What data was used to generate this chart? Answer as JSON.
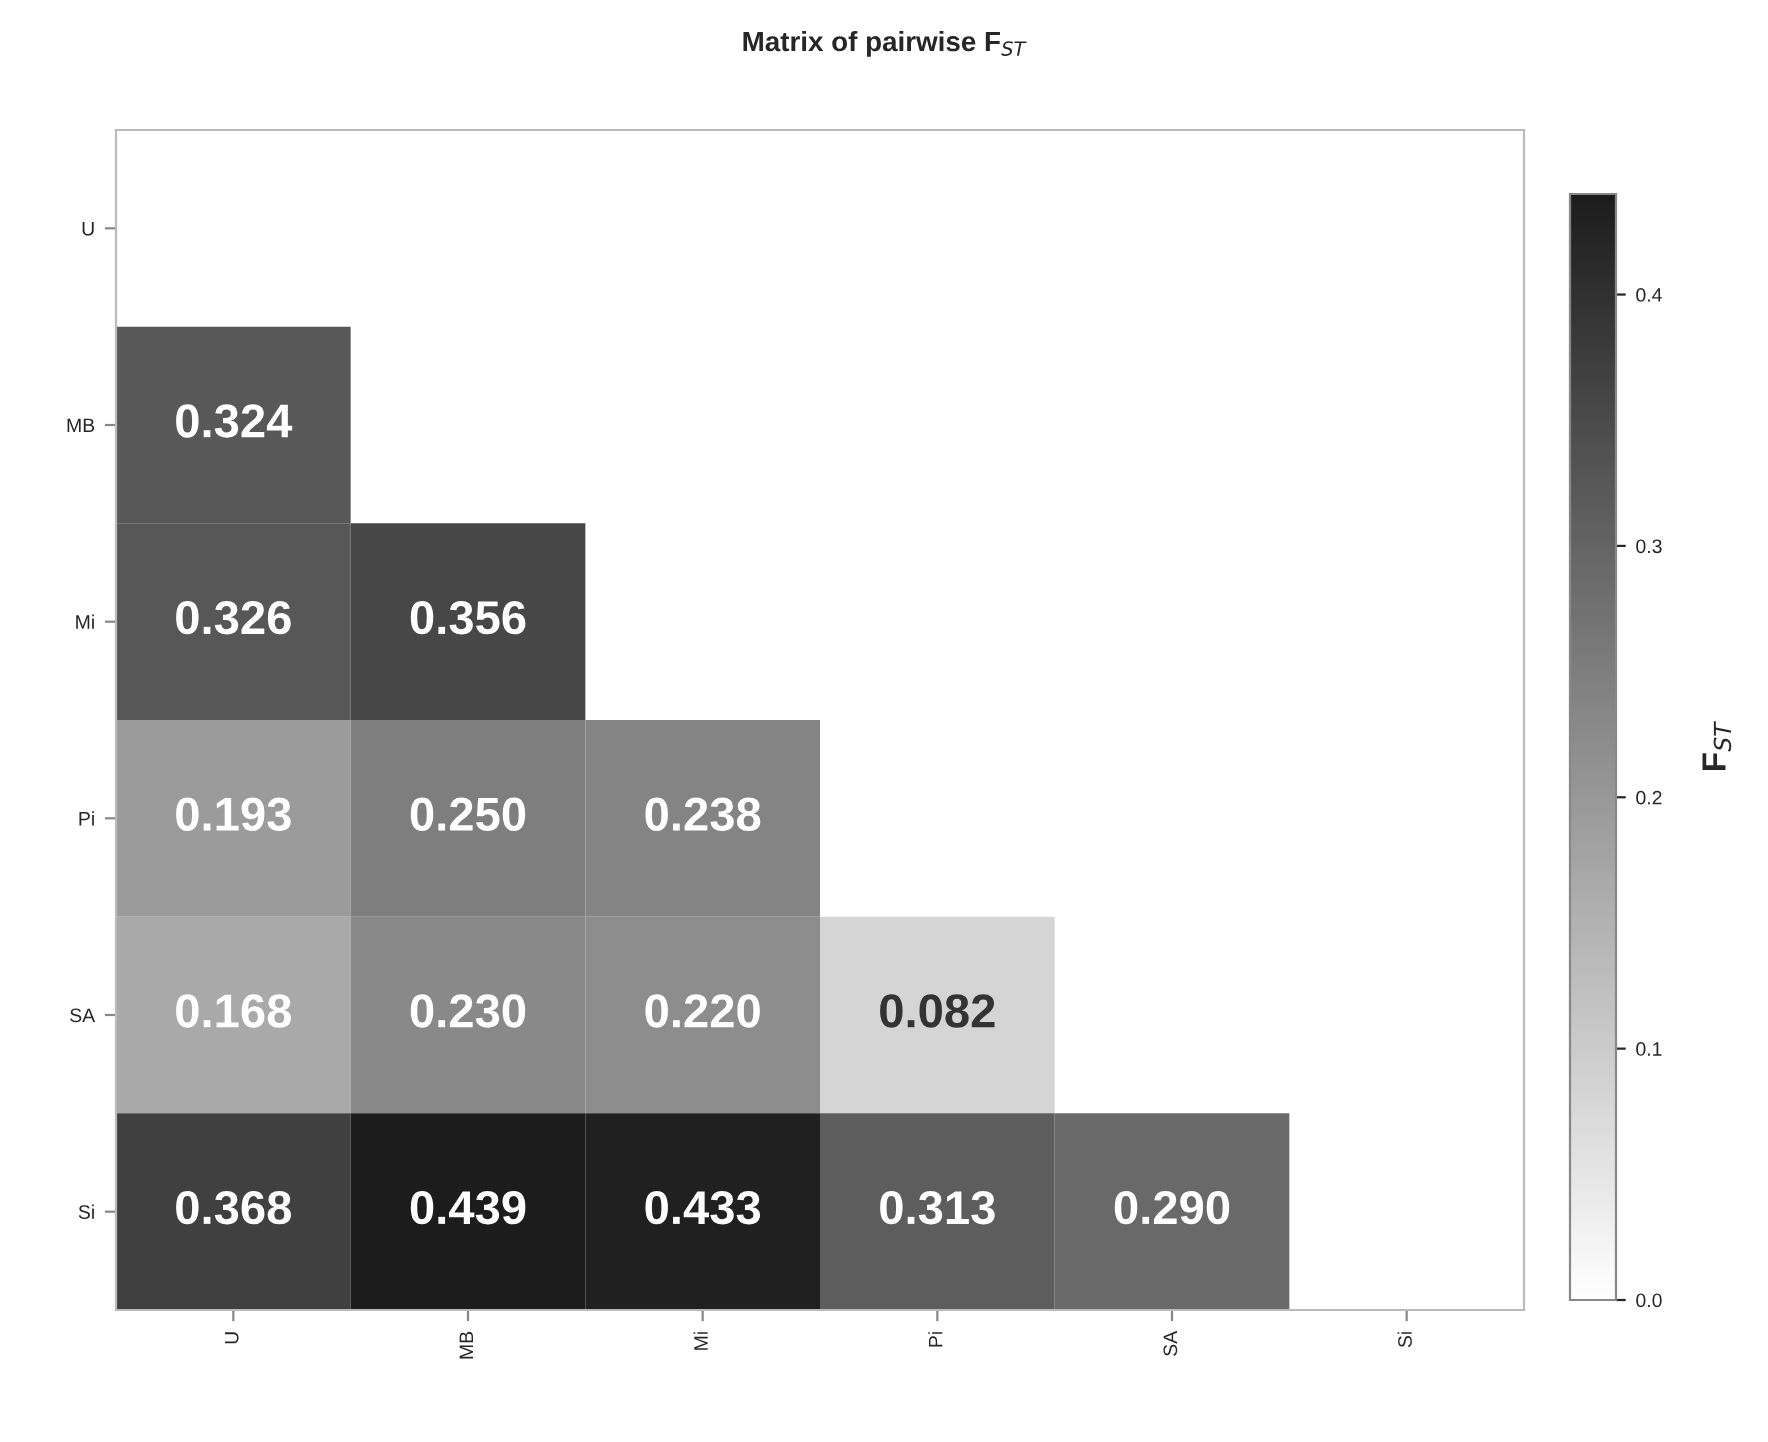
{
  "chart_data": {
    "type": "heatmap",
    "title": "Matrix of pairwise F$_{ST}$",
    "clabel": "F$_{ST}$",
    "categories": [
      "U",
      "MB",
      "Mi",
      "Pi",
      "SA",
      "Si"
    ],
    "y_categories": [
      "U",
      "MB",
      "Mi",
      "Pi",
      "SA",
      "Si"
    ],
    "cells": [
      [
        null,
        null,
        null,
        null,
        null,
        null
      ],
      [
        0.324,
        null,
        null,
        null,
        null,
        null
      ],
      [
        0.326,
        0.356,
        null,
        null,
        null,
        null
      ],
      [
        0.193,
        0.25,
        0.238,
        null,
        null,
        null
      ],
      [
        0.168,
        0.23,
        0.22,
        0.082,
        null,
        null
      ],
      [
        0.368,
        0.439,
        0.433,
        0.313,
        0.29,
        null
      ]
    ],
    "cell_labels": [
      [
        null,
        null,
        null,
        null,
        null,
        null
      ],
      [
        "0.324",
        null,
        null,
        null,
        null,
        null
      ],
      [
        "0.326",
        "0.356",
        null,
        null,
        null,
        null
      ],
      [
        "0.193",
        "0.250",
        "0.238",
        null,
        null,
        null
      ],
      [
        "0.168",
        "0.230",
        "0.220",
        "0.082",
        null,
        null
      ],
      [
        "0.368",
        "0.439",
        "0.433",
        "0.313",
        "0.290",
        null
      ]
    ],
    "clim": [
      0,
      0.44
    ],
    "cticks": [
      {
        "value": 0,
        "label": "0.0"
      },
      {
        "value": 0.1,
        "label": "0.1"
      },
      {
        "value": 0.2,
        "label": "0.2"
      },
      {
        "value": 0.3,
        "label": "0.3"
      },
      {
        "value": 0.4,
        "label": "0.4"
      }
    ]
  }
}
